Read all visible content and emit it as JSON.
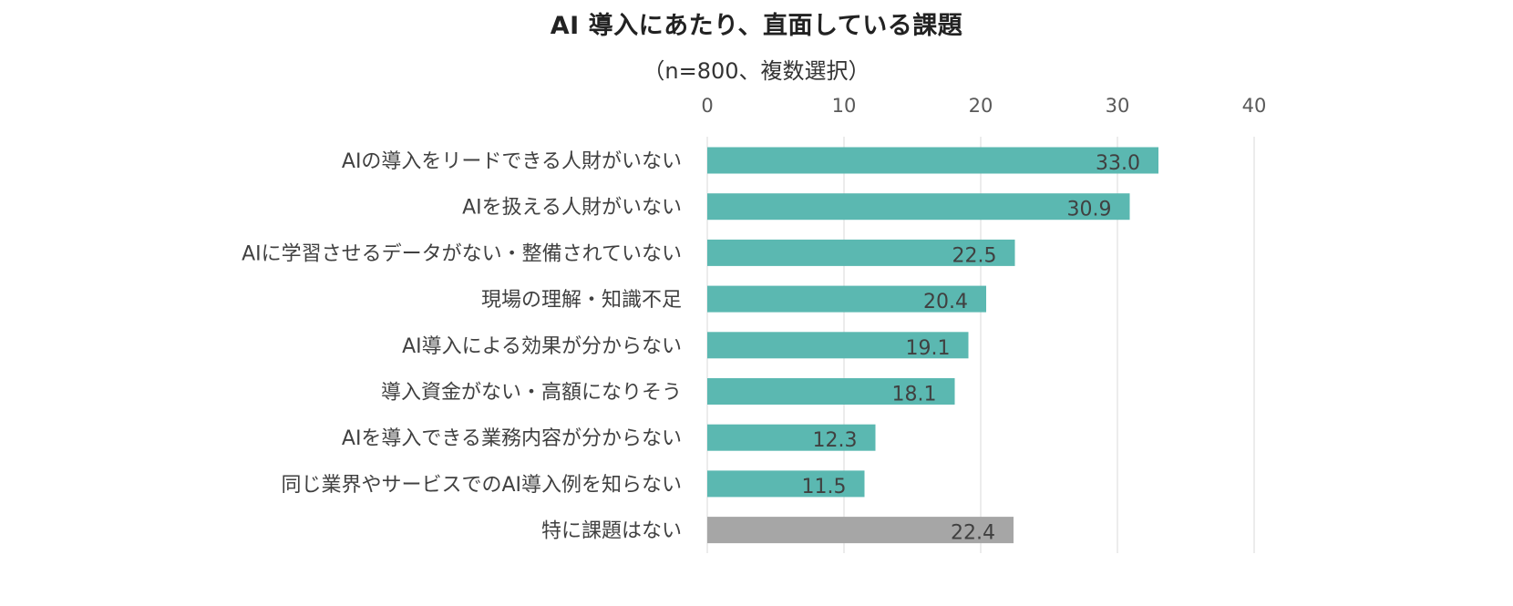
{
  "chart_data": {
    "type": "bar",
    "orientation": "horizontal",
    "title": "AI 導入にあたり、直面している課題",
    "subtitle": "（n=800、複数選択）",
    "categories": [
      "AIの導入をリードできる人財がいない",
      "AIを扱える人財がいない",
      "AIに学習させるデータがない・整備されていない",
      "現場の理解・知識不足",
      "AI導入による効果が分からない",
      "導入資金がない・高額になりそう",
      "AIを導入できる業務内容が分からない",
      "同じ業界やサービスでのAI導入例を知らない",
      "特に課題はない"
    ],
    "values": [
      33.0,
      30.9,
      22.5,
      20.4,
      19.1,
      18.1,
      12.3,
      11.5,
      22.4
    ],
    "value_labels": [
      "33.0",
      "30.9",
      "22.5",
      "20.4",
      "19.1",
      "18.1",
      "12.3",
      "11.5",
      "22.4"
    ],
    "bar_colors": [
      "#5bb8b1",
      "#5bb8b1",
      "#5bb8b1",
      "#5bb8b1",
      "#5bb8b1",
      "#5bb8b1",
      "#5bb8b1",
      "#5bb8b1",
      "#a6a6a6"
    ],
    "xlim": [
      0,
      40
    ],
    "xticks": [
      0,
      10,
      20,
      30,
      40
    ],
    "xtick_labels": [
      "0",
      "10",
      "20",
      "30",
      "40"
    ],
    "axis_position": "top",
    "grid": true,
    "legend": "none",
    "gridline_color": "#d9d9d9"
  }
}
